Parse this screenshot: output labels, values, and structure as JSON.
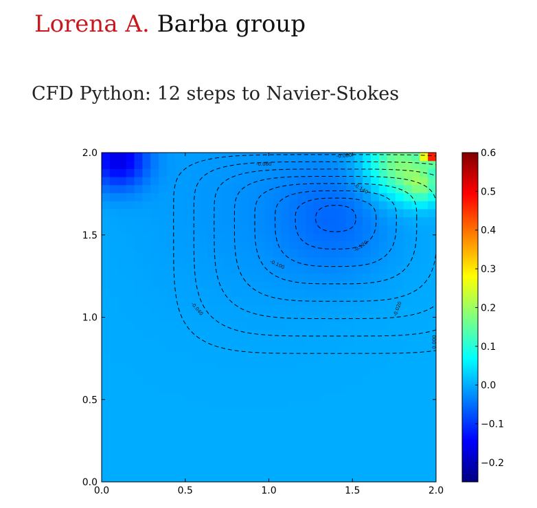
{
  "header": {
    "author_first": "Lorena A.",
    "author_last": "Barba group"
  },
  "page": {
    "title": "CFD Python: 12 steps to Navier-Stokes"
  },
  "colors": {
    "title_red": "#c8181e",
    "title_dark": "#111111",
    "colormap": "jet"
  },
  "chart_data": {
    "type": "heatmap",
    "description_of_fields": "pressure-like field with streamline contours (lid-driven cavity)",
    "xlim": [
      0.0,
      2.0
    ],
    "ylim": [
      0.0,
      2.0
    ],
    "xticks": [
      "0.0",
      "0.5",
      "1.0",
      "1.5",
      "2.0"
    ],
    "yticks": [
      "0.0",
      "0.5",
      "1.0",
      "1.5",
      "2.0"
    ],
    "colorbar": {
      "range": [
        -0.25,
        0.6
      ],
      "ticks": [
        "0.6",
        "0.5",
        "0.4",
        "0.3",
        "0.2",
        "0.1",
        "0.0",
        "−0.1",
        "−0.2"
      ]
    },
    "vortex_center": [
      1.4,
      1.6
    ],
    "contour_levels": [
      -0.14,
      -0.12,
      -0.1,
      -0.08,
      -0.06,
      -0.04,
      -0.02,
      0.0
    ],
    "contour_labels": [
      "-0.140",
      "-0.120",
      "-0.100",
      "-0.080",
      "-0.060",
      "-0.040",
      "-0.020",
      "0.000"
    ],
    "contour_style": "dashed black",
    "grid": false
  }
}
